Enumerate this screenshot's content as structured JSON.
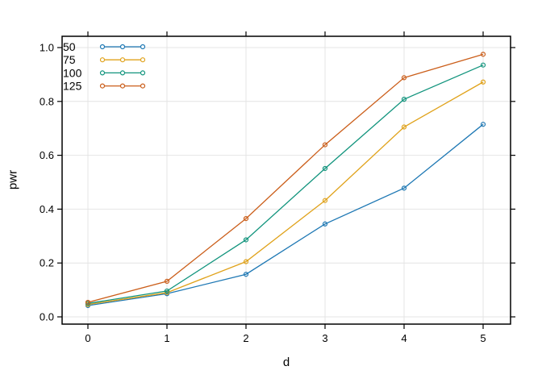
{
  "chart_data": {
    "type": "line",
    "title": "",
    "xlabel": "d",
    "ylabel": "pwr",
    "x": [
      0,
      1,
      2,
      3,
      4,
      5
    ],
    "x_ticks": [
      0,
      1,
      2,
      3,
      4,
      5
    ],
    "y_ticks": [
      0.0,
      0.2,
      0.4,
      0.6,
      0.8,
      1.0
    ],
    "xlim": [
      -0.33,
      5.35
    ],
    "ylim": [
      -0.03,
      1.045
    ],
    "grid": true,
    "marker": "open-circle",
    "legend_position": "top-left-inside",
    "frame_color": "#000000",
    "grid_color": "#e4e4e4",
    "series": [
      {
        "name": "50",
        "color": "#1e78b4",
        "values": [
          0.042,
          0.086,
          0.158,
          0.345,
          0.478,
          0.715
        ]
      },
      {
        "name": "75",
        "color": "#e0a21a",
        "values": [
          0.046,
          0.09,
          0.205,
          0.432,
          0.705,
          0.872
        ]
      },
      {
        "name": "100",
        "color": "#11947d",
        "values": [
          0.05,
          0.096,
          0.286,
          0.551,
          0.808,
          0.935
        ]
      },
      {
        "name": "125",
        "color": "#cb5e1a",
        "values": [
          0.054,
          0.132,
          0.365,
          0.639,
          0.888,
          0.975
        ]
      }
    ]
  }
}
